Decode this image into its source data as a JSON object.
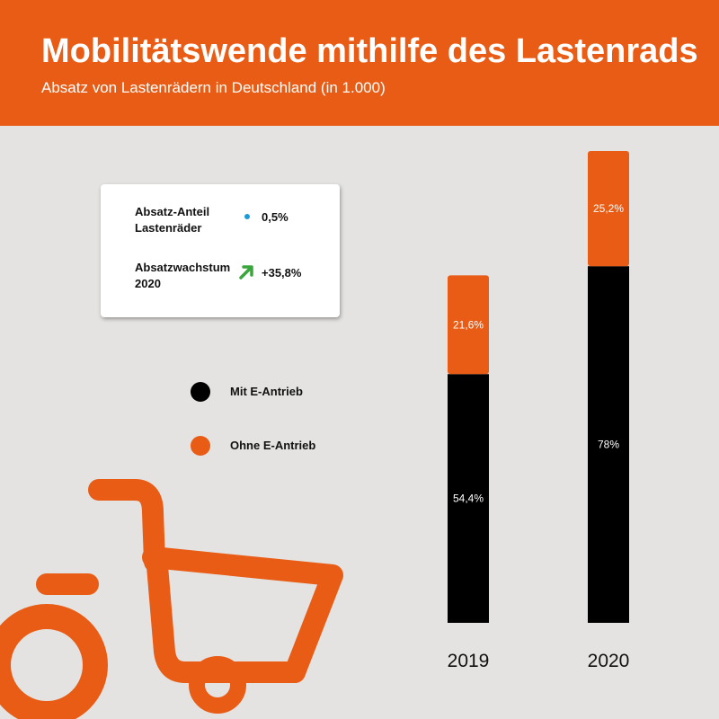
{
  "header": {
    "title": "Mobilitätswende mithilfe des Lastenrads",
    "subtitle": "Absatz von Lastenrädern in Deutschland (in 1.000)"
  },
  "infobox": {
    "rows": [
      {
        "label_line1": "Absatz-Anteil",
        "label_line2": "Lastenräder",
        "value": "0,5%",
        "icon": "dot-icon"
      },
      {
        "label_line1": "Absatzwachstum",
        "label_line2": "2020",
        "value": "+35,8%",
        "icon": "arrow-up-right-icon"
      }
    ]
  },
  "legend": [
    {
      "label": "Mit E-Antrieb",
      "color": "#000000"
    },
    {
      "label": "Ohne E-Antrieb",
      "color": "#e85c15"
    }
  ],
  "colors": {
    "accent": "#e85c15",
    "dark": "#000000",
    "background": "#e5e3e1",
    "info_dot": "#1d9bd8",
    "arrow": "#3aa53a"
  },
  "chart_data": {
    "type": "bar",
    "stacked": true,
    "categories": [
      "2019",
      "2020"
    ],
    "series": [
      {
        "name": "Mit E-Antrieb",
        "values": [
          54.4,
          78
        ],
        "labels": [
          "54,4%",
          "78%"
        ],
        "color": "#000000"
      },
      {
        "name": "Ohne E-Antrieb",
        "values": [
          21.6,
          25.2
        ],
        "labels": [
          "21,6%",
          "25,2%"
        ],
        "color": "#e85c15"
      }
    ],
    "ylim": [
      0,
      103.2
    ]
  }
}
